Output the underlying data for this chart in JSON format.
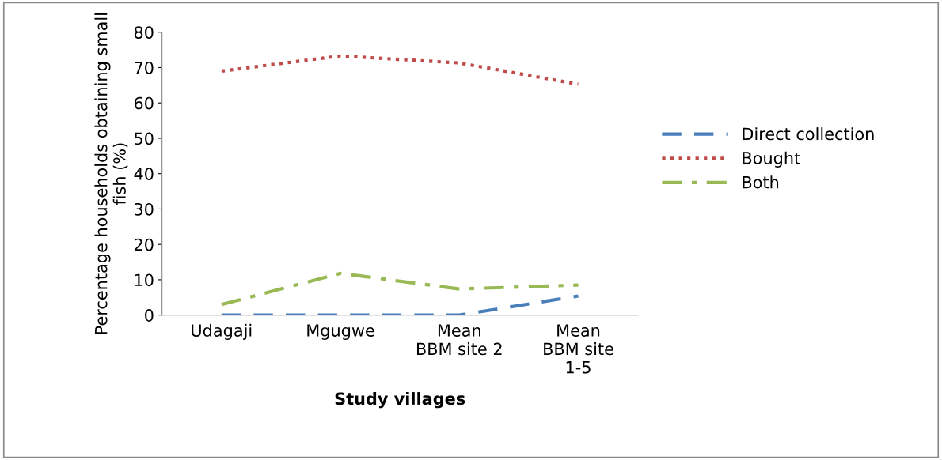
{
  "chart_data": {
    "type": "line",
    "xlabel": "Study villages",
    "ylabel": "Percentage households obtaining small fish (%)",
    "categories": [
      "Udagaji",
      "Mgugwe",
      "Mean\nBBM site 2",
      "Mean\nBBM site\n1-5"
    ],
    "series": [
      {
        "name": "Direct collection",
        "color": "#4a7ebb",
        "values": [
          0,
          0,
          0,
          5.4
        ],
        "line_style": "dashed"
      },
      {
        "name": "Bought",
        "color": "#be4b48",
        "values": [
          69,
          73.3,
          71.3,
          65.3
        ],
        "line_style": "dotted"
      },
      {
        "name": "Both",
        "color": "#98b954",
        "values": [
          3,
          11.8,
          7.4,
          8.5
        ],
        "line_style": "dashdot"
      }
    ],
    "ylim": [
      0,
      80
    ],
    "yticks": [
      0,
      10,
      20,
      30,
      40,
      50,
      60,
      70,
      80
    ],
    "grid": false,
    "legend": "right",
    "marker": "none"
  }
}
